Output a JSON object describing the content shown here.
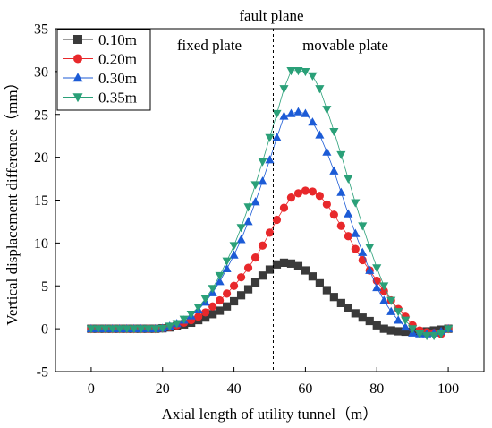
{
  "chart_data": {
    "type": "scatter",
    "title": "",
    "xlabel": "Axial length of utility tunnel（m）",
    "ylabel": "Vertical displacement difference（mm）",
    "xlim": [
      -10,
      110
    ],
    "ylim": [
      -5,
      35
    ],
    "x_ticks": [
      "0",
      "20",
      "40",
      "60",
      "80",
      "100"
    ],
    "x_tick_values": [
      0,
      20,
      40,
      60,
      80,
      100
    ],
    "y_ticks": [
      "-5",
      "0",
      "5",
      "10",
      "15",
      "20",
      "25",
      "30",
      "35"
    ],
    "y_tick_values": [
      -5,
      0,
      5,
      10,
      15,
      20,
      25,
      30,
      35
    ],
    "grid": false,
    "legend_position": "top-left",
    "annotations": {
      "fault_plane": "fault plane",
      "fault_x": 51,
      "fixed_plate": "fixed plate",
      "movable_plate": "movable plate"
    },
    "x": [
      0,
      2,
      4,
      6,
      8,
      10,
      12,
      14,
      16,
      18,
      20,
      22,
      24,
      26,
      28,
      30,
      32,
      34,
      36,
      38,
      40,
      42,
      44,
      46,
      48,
      50,
      52,
      54,
      56,
      58,
      60,
      62,
      64,
      66,
      68,
      70,
      72,
      74,
      76,
      78,
      80,
      82,
      84,
      86,
      88,
      90,
      92,
      94,
      96,
      98,
      100
    ],
    "series": [
      {
        "name": "0.10m",
        "marker": "square",
        "color": "#3a3a3a",
        "values": [
          0,
          0,
          0,
          0,
          0,
          0,
          0,
          0,
          0,
          0,
          0.05,
          0.15,
          0.3,
          0.5,
          0.7,
          1,
          1.3,
          1.7,
          2.1,
          2.6,
          3.2,
          3.9,
          4.6,
          5.4,
          6.2,
          6.9,
          7.5,
          7.7,
          7.6,
          7.3,
          6.8,
          6.1,
          5.3,
          4.5,
          3.7,
          3,
          2.4,
          1.8,
          1.3,
          0.9,
          0.4,
          0,
          -0.2,
          -0.3,
          -0.35,
          -0.4,
          -0.35,
          -0.3,
          -0.2,
          -0.1,
          0
        ]
      },
      {
        "name": "0.20m",
        "marker": "circle",
        "color": "#e8282b",
        "values": [
          0,
          0,
          0,
          0,
          0,
          0,
          0,
          0,
          0,
          0,
          0.05,
          0.2,
          0.4,
          0.7,
          1,
          1.4,
          1.9,
          2.6,
          3.3,
          4.1,
          5,
          6,
          7.1,
          8.3,
          9.7,
          11.2,
          12.7,
          14.1,
          15.3,
          15.8,
          16.1,
          16,
          15.5,
          14.5,
          13.3,
          12,
          10.8,
          9.3,
          8,
          6.8,
          5.6,
          4.4,
          3.3,
          2.3,
          1.4,
          0.4,
          -0.2,
          -0.4,
          -0.5,
          -0.6,
          0
        ]
      },
      {
        "name": "0.30m",
        "marker": "triangle-up",
        "color": "#1c5bd6",
        "values": [
          0,
          0,
          0,
          0,
          0,
          0,
          0,
          0,
          0,
          0,
          0.05,
          0.3,
          0.6,
          1,
          1.5,
          2.2,
          3.1,
          4.2,
          5.5,
          7,
          8.6,
          10.4,
          12.5,
          14.8,
          17.2,
          19.7,
          22.3,
          24.8,
          25.1,
          25.3,
          25.1,
          24.1,
          22.6,
          20.6,
          18.4,
          15.9,
          13.4,
          11.1,
          8.9,
          6.8,
          4.8,
          3.3,
          2,
          1,
          0.2,
          -0.5,
          -0.6,
          -0.6,
          -0.5,
          -0.3,
          0
        ]
      },
      {
        "name": "0.35m",
        "marker": "triangle-down",
        "color": "#2aa078",
        "values": [
          0,
          0,
          0,
          0,
          0,
          0,
          0,
          0,
          0,
          0,
          0.05,
          0.3,
          0.6,
          1.1,
          1.7,
          2.5,
          3.5,
          4.7,
          6.2,
          7.9,
          9.7,
          11.8,
          14.2,
          16.8,
          19.5,
          22.3,
          25.1,
          28,
          30.1,
          30.1,
          30,
          29.5,
          28,
          25.6,
          23,
          20.3,
          17.5,
          14.7,
          12,
          9.5,
          7.1,
          5,
          3.3,
          2,
          1,
          0,
          -0.6,
          -0.8,
          -0.8,
          -0.6,
          0
        ]
      }
    ]
  }
}
